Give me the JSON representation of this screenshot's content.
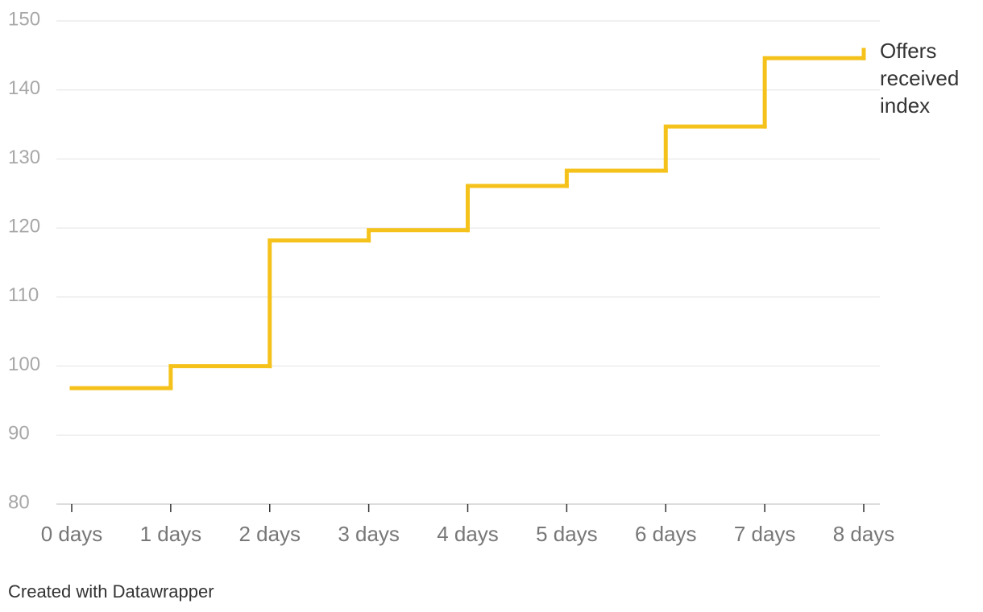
{
  "chart_data": {
    "type": "step",
    "categories": [
      "0 days",
      "1 days",
      "2 days",
      "3 days",
      "4 days",
      "5 days",
      "6 days",
      "7 days",
      "8 days"
    ],
    "series": [
      {
        "name": "Offers received index",
        "color": "#f5c21b",
        "values": [
          96.8,
          100,
          118.2,
          119.7,
          126.1,
          128.3,
          134.7,
          144.6,
          145.8
        ]
      }
    ],
    "ylim": [
      80,
      150
    ],
    "yticks": [
      80,
      90,
      100,
      110,
      120,
      130,
      140,
      150
    ],
    "grid": true,
    "footer": "Created with Datawrapper"
  }
}
